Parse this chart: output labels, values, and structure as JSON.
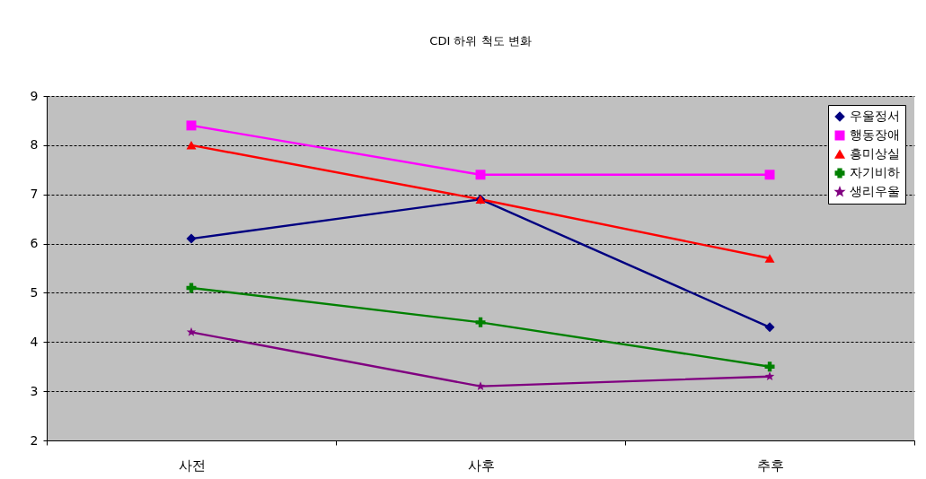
{
  "chart_data": {
    "type": "line",
    "title": "CDI 하위 척도 변화",
    "categories": [
      "사전",
      "사후",
      "추후"
    ],
    "series": [
      {
        "name": "우울정서",
        "color": "#000080",
        "marker": "diamond",
        "values": [
          6.1,
          6.9,
          4.3
        ]
      },
      {
        "name": "행동장애",
        "color": "#ff00ff",
        "marker": "square",
        "values": [
          8.4,
          7.4,
          7.4
        ]
      },
      {
        "name": "흥미상실",
        "color": "#ff0000",
        "marker": "triangle",
        "values": [
          8.0,
          6.9,
          5.7
        ]
      },
      {
        "name": "자기비하",
        "color": "#008000",
        "marker": "cross",
        "values": [
          5.1,
          4.4,
          3.5
        ]
      },
      {
        "name": "생리우울",
        "color": "#800080",
        "marker": "star",
        "values": [
          4.2,
          3.1,
          3.3
        ]
      }
    ],
    "ylim": [
      2,
      9
    ],
    "yticks": [
      2,
      3,
      4,
      5,
      6,
      7,
      8,
      9
    ],
    "grid": "y",
    "legend": "top right"
  }
}
